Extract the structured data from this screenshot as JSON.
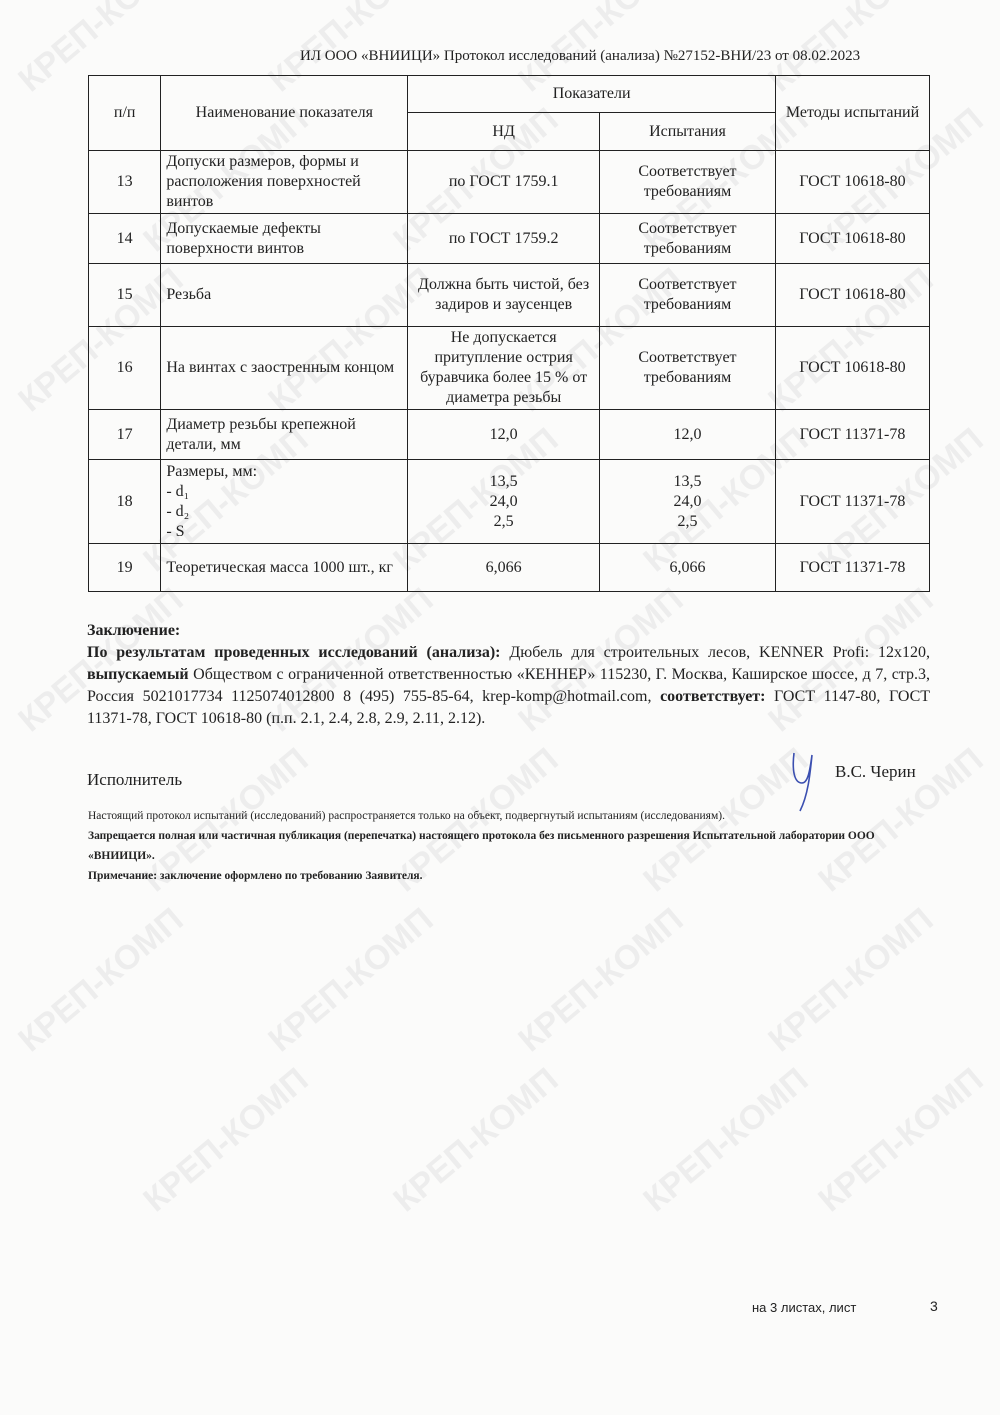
{
  "watermark": "КРЕП-КОМП",
  "header": "ИЛ ООО «ВНИИЦИ» Протокол исследований (анализа)  №27152-ВНИ/23 от  08.02.2023",
  "table": {
    "headers": {
      "num": "п/п",
      "name": "Наименование показателя",
      "indicators": "Показатели",
      "nd": "НД",
      "tests": "Испытания",
      "methods": "Методы испытаний"
    },
    "rows": [
      {
        "num": "13",
        "name": "Допуски размеров, формы и расположения поверхностей винтов",
        "nd": "по ГОСТ 1759.1",
        "test": "Соответствует требованиям",
        "method": "ГОСТ 10618-80"
      },
      {
        "num": "14",
        "name": "Допускаемые дефекты поверхности винтов",
        "nd": "по ГОСТ 1759.2",
        "test": "Соответствует требованиям",
        "method": "ГОСТ 10618-80"
      },
      {
        "num": "15",
        "name": "Резьба",
        "nd": "Должна быть чистой, без задиров и заусенцев",
        "test": "Соответствует требованиям",
        "method": "ГОСТ 10618-80"
      },
      {
        "num": "16",
        "name": "На винтах с заостренным концом",
        "nd": "Не допускается притупление острия буравчика более 15 % от диаметра резьбы",
        "test": "Соответствует требованиям",
        "method": "ГОСТ 10618-80"
      },
      {
        "num": "17",
        "name": "Диаметр резьбы крепежной детали, мм",
        "nd": "12,0",
        "test": "12,0",
        "method": "ГОСТ 11371-78"
      },
      {
        "num": "18",
        "name": "Размеры, мм:",
        "sub": [
          "- d₁",
          "- d₂",
          "- S"
        ],
        "nd_list": [
          "13,5",
          "24,0",
          "2,5"
        ],
        "test_list": [
          "13,5",
          "24,0",
          "2,5"
        ],
        "method": "ГОСТ 11371-78"
      },
      {
        "num": "19",
        "name": "Теоретическая масса 1000 шт., кг",
        "nd": "6,066",
        "test": "6,066",
        "method": "ГОСТ 11371-78"
      }
    ]
  },
  "conclusion": {
    "title": "Заключение:",
    "lead": "По результатам проведенных исследований (анализа):",
    "product": " Дюбель для строительных лесов, KENNER Profi: 12х120, ",
    "issued_label": "выпускаемый",
    "issuer": " Обществом с ограниченной ответственностью «КЕННЕР»  115230, Г. Москва, Каширское шоссе, д 7, стр.3, Россия 5021017734 1125074012800 8 (495) 755-85-64, krep-komp@hotmail.com, ",
    "complies_label": "соответствует:",
    "standards": " ГОСТ 1147-80, ГОСТ 11371-78, ГОСТ 10618-80 (п.п. 2.1, 2.4, 2.8, 2.9, 2.11, 2.12)."
  },
  "executor_label": "Исполнитель",
  "signer": "В.С. Черин",
  "notes": [
    "Настоящий протокол испытаний (исследований) распространяется только на объект, подвергнутый испытаниям (исследованиям).",
    "Запрещается полная или частичная публикация (перепечатка) настоящего протокола без письменного разрешения Испытательной лаборатории  ООО «ВНИИЦИ».",
    "Примечание: заключение оформлено по требованию Заявителя."
  ],
  "footer": {
    "sheets": "на 3  листах, лист",
    "page": "3"
  },
  "colors": {
    "ink": "#222222",
    "signature": "#3b4fb0",
    "paper": "#fbfbfa"
  }
}
